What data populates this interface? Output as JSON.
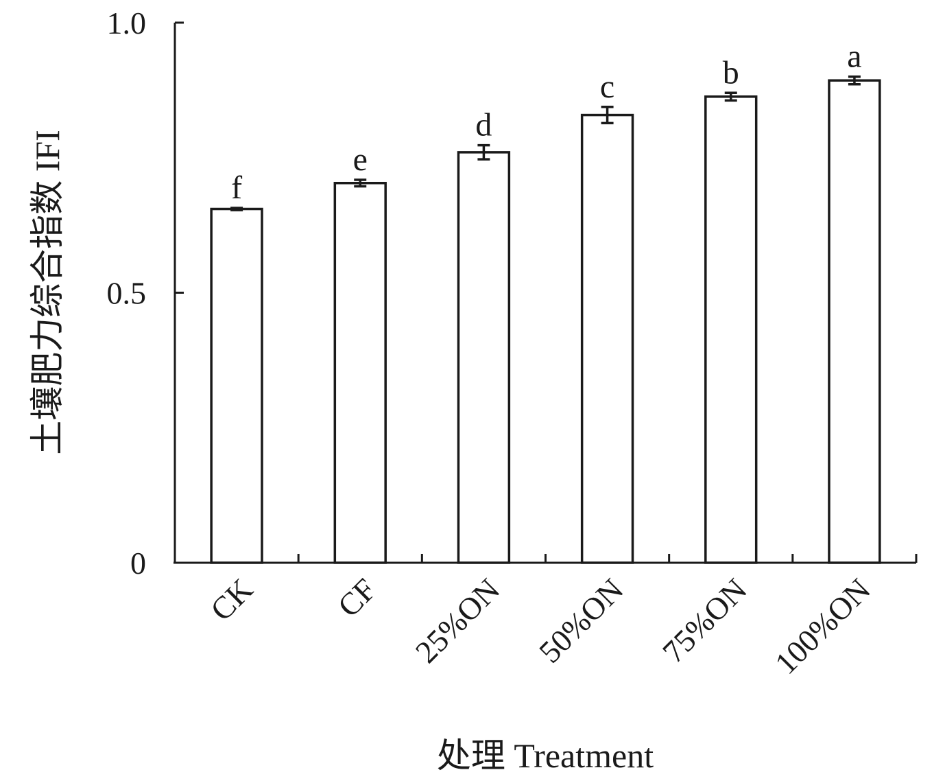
{
  "chart_data": {
    "type": "bar",
    "categories": [
      "CK",
      "CF",
      "25%ON",
      "50%ON",
      "75%ON",
      "100%ON"
    ],
    "values": [
      0.655,
      0.703,
      0.76,
      0.829,
      0.863,
      0.893
    ],
    "errors": [
      0.002,
      0.006,
      0.013,
      0.015,
      0.007,
      0.007
    ],
    "significance_letters": [
      "f",
      "e",
      "d",
      "c",
      "b",
      "a"
    ],
    "xlabel": "处理 Treatment",
    "ylabel": "土壤肥力综合指数 IFI",
    "ylim": [
      0,
      1.0
    ],
    "yticks": [
      {
        "value": 0,
        "label": "0"
      },
      {
        "value": 0.5,
        "label": "0.5"
      },
      {
        "value": 1.0,
        "label": "1.0"
      }
    ],
    "grid": false,
    "legend": "none",
    "xtick_rotation": "45deg"
  }
}
